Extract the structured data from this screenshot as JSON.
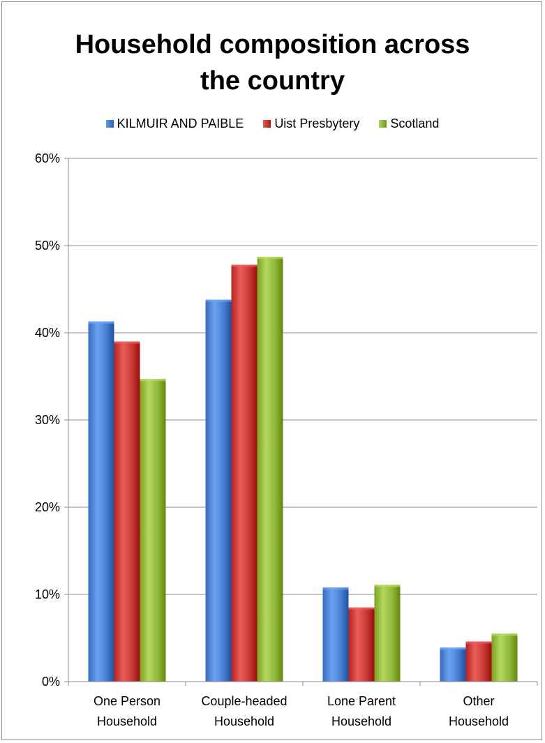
{
  "chart_data": {
    "type": "bar",
    "title": "Household composition across the country",
    "title_lines": [
      "Household composition across",
      "the country"
    ],
    "categories": [
      [
        "One Person",
        "Household"
      ],
      [
        "Couple-headed",
        "Household"
      ],
      [
        "Lone Parent",
        "Household"
      ],
      [
        "Other",
        "Household"
      ]
    ],
    "series": [
      {
        "name": "KILMUIR AND PAIBLE",
        "color": "#4a7fd0",
        "values": [
          41.3,
          43.8,
          10.8,
          3.9
        ]
      },
      {
        "name": "Uist Presbytery",
        "color": "#c93a36",
        "values": [
          39.0,
          47.8,
          8.5,
          4.6
        ]
      },
      {
        "name": "Scotland",
        "color": "#8fb639",
        "values": [
          34.7,
          48.7,
          11.1,
          5.5
        ]
      }
    ],
    "ylim": [
      0,
      60
    ],
    "yticks": [
      "0%",
      "10%",
      "20%",
      "30%",
      "40%",
      "50%",
      "60%"
    ],
    "grid": true,
    "legend": "top"
  }
}
